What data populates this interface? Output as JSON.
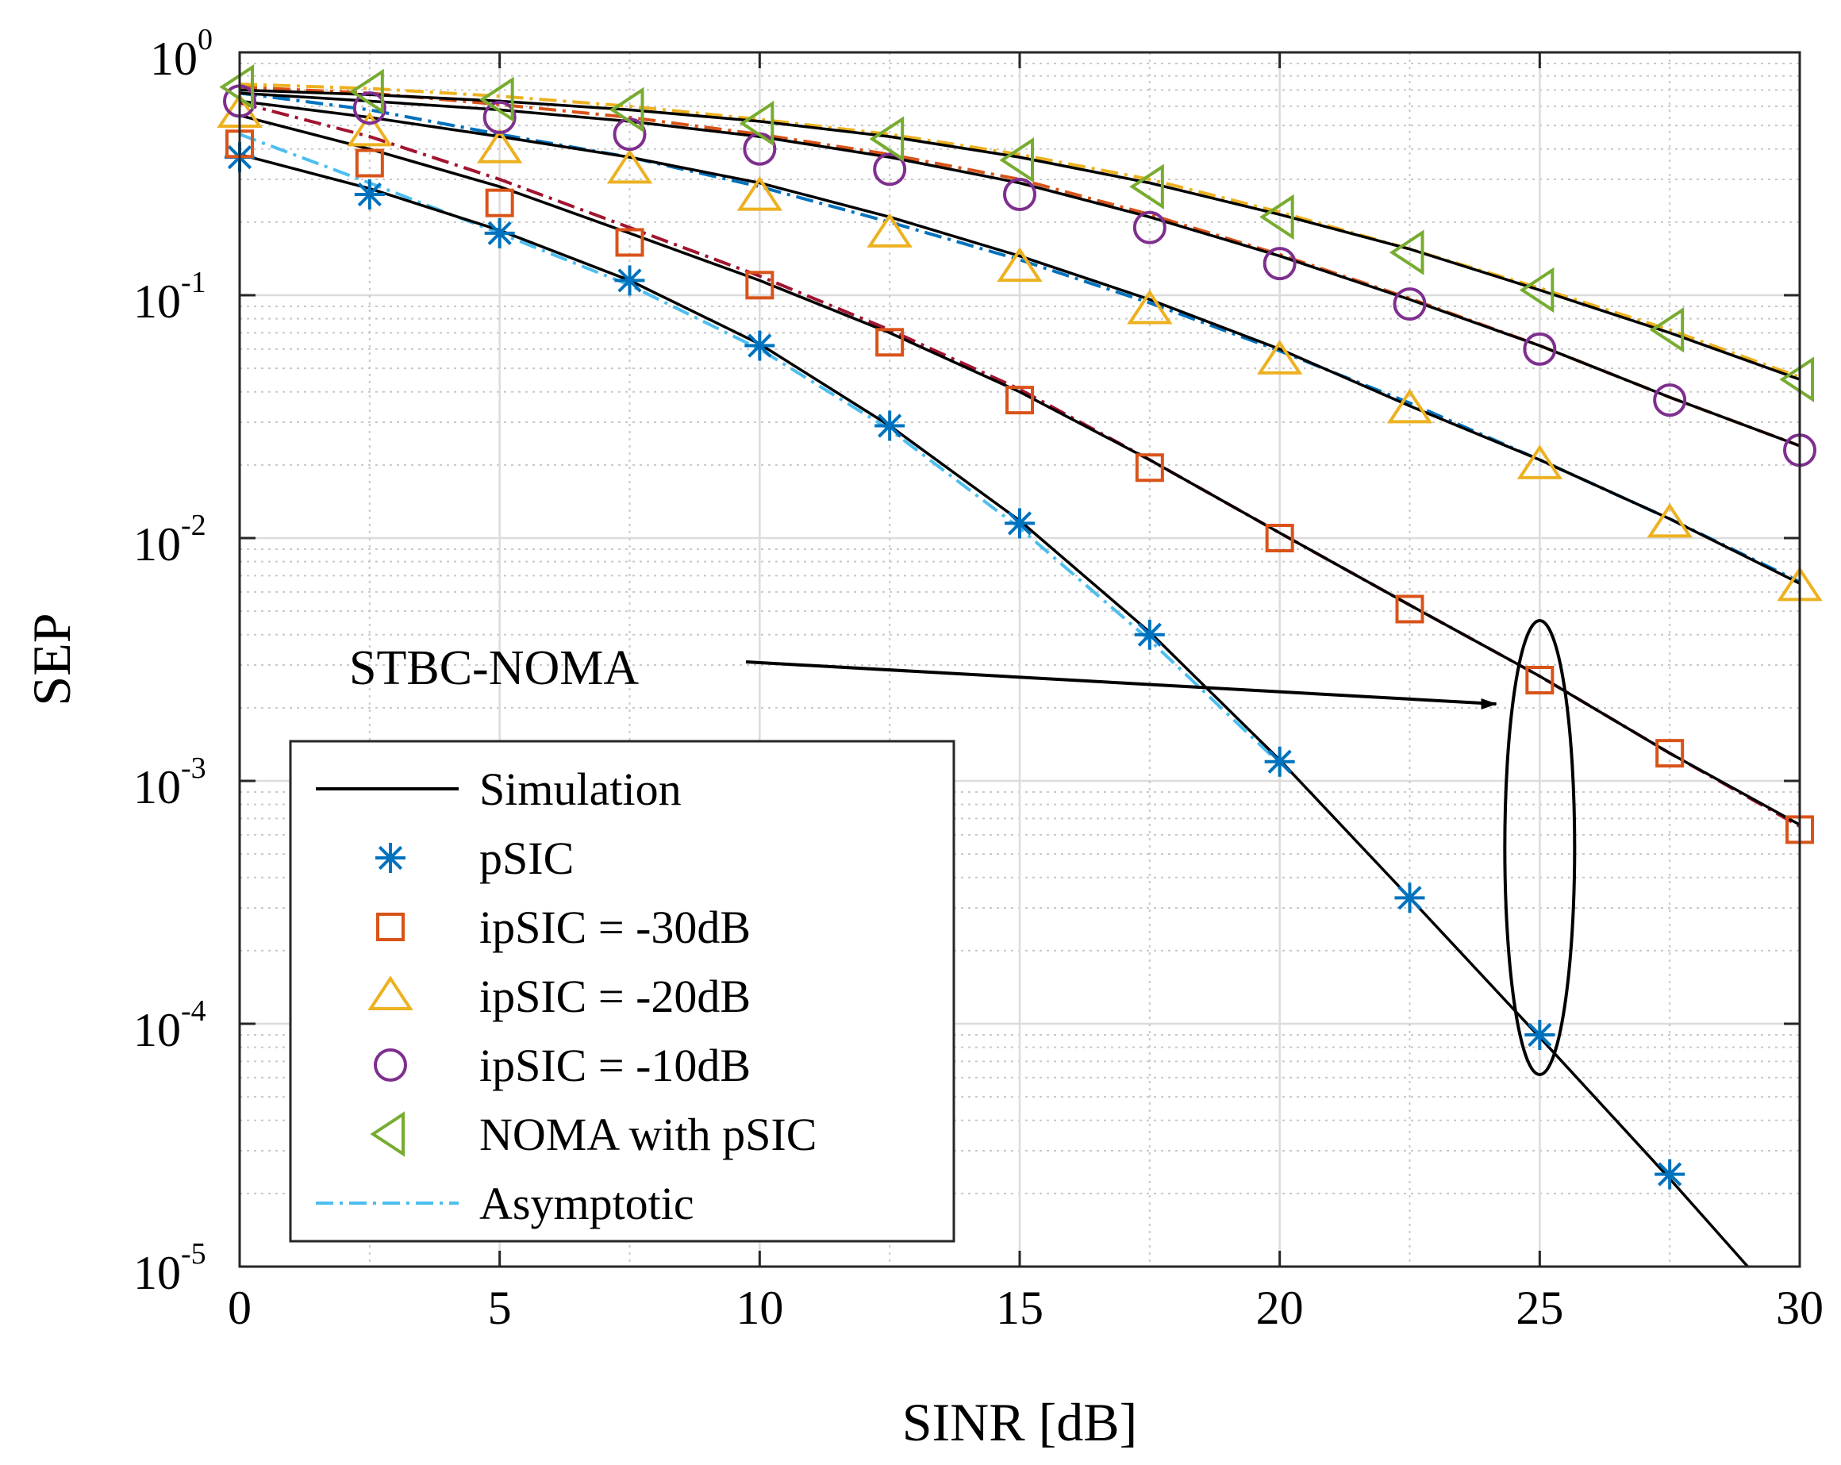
{
  "chart_data": {
    "type": "line",
    "yscale": "log",
    "xlabel": "SINR [dB]",
    "ylabel": "SEP",
    "xlim": [
      0,
      30
    ],
    "ylim": [
      1e-05,
      1
    ],
    "grid": true,
    "x_ticks": [
      0,
      5,
      10,
      15,
      20,
      25,
      30
    ],
    "x_tick_labels": [
      "0",
      "5",
      "10",
      "15",
      "20",
      "25",
      "30"
    ],
    "y_ticks": [
      {
        "value": 1,
        "base": "10",
        "exp": "0"
      },
      {
        "value": 0.1,
        "base": "10",
        "exp": "-1"
      },
      {
        "value": 0.01,
        "base": "10",
        "exp": "-2"
      },
      {
        "value": 0.001,
        "base": "10",
        "exp": "-3"
      },
      {
        "value": 0.0001,
        "base": "10",
        "exp": "-4"
      },
      {
        "value": 1e-05,
        "base": "10",
        "exp": "-5"
      }
    ],
    "marker_x": [
      0,
      2.5,
      5,
      7.5,
      10,
      12.5,
      15,
      17.5,
      20,
      22.5,
      25,
      27.5,
      30
    ],
    "series": [
      {
        "name": "pSIC",
        "marker": "asterisk",
        "color": "#0072BD",
        "x": [
          0,
          2.5,
          5,
          7.5,
          10,
          12.5,
          15,
          17.5,
          20,
          22.5,
          25,
          27.5
        ],
        "values": [
          0.37,
          0.26,
          0.18,
          0.115,
          0.062,
          0.029,
          0.0115,
          0.004,
          0.0012,
          0.00033,
          9e-05,
          2.4e-05
        ],
        "sim_x": [
          0,
          2.5,
          5,
          7.5,
          10,
          12.5,
          15,
          17.5,
          20,
          22.5,
          25,
          27.5,
          29
        ],
        "sim": [
          0.38,
          0.275,
          0.185,
          0.115,
          0.063,
          0.029,
          0.0118,
          0.0041,
          0.00122,
          0.00033,
          8.8e-05,
          2.3e-05,
          1e-05
        ],
        "asym_color": "#4DBEEE",
        "asym_x": [
          0,
          2.5,
          5,
          7.5,
          10,
          12.5,
          15,
          17.5,
          20
        ],
        "asym": [
          0.46,
          0.29,
          0.18,
          0.11,
          0.06,
          0.028,
          0.011,
          0.0038,
          0.00118
        ]
      },
      {
        "name": "ipSIC = -30dB",
        "marker": "square",
        "color": "#D95319",
        "x": [
          0,
          2.5,
          5,
          7.5,
          10,
          12.5,
          15,
          17.5,
          20,
          22.5,
          25,
          27.5,
          30
        ],
        "values": [
          0.42,
          0.35,
          0.24,
          0.165,
          0.11,
          0.064,
          0.037,
          0.0195,
          0.01,
          0.0051,
          0.0026,
          0.0013,
          0.00063
        ],
        "sim": [
          0.55,
          0.4,
          0.28,
          0.18,
          0.115,
          0.07,
          0.04,
          0.021,
          0.0105,
          0.0053,
          0.0027,
          0.0013,
          0.00066
        ],
        "asym_color": "#A2142F",
        "asym_x": [
          0,
          2.5,
          5,
          7.5,
          10,
          12.5,
          15,
          17.5,
          20,
          22.5,
          25,
          27.5,
          30
        ],
        "asym": [
          0.62,
          0.45,
          0.3,
          0.19,
          0.12,
          0.072,
          0.041,
          0.021,
          0.0105,
          0.0053,
          0.0027,
          0.0013,
          0.00065
        ]
      },
      {
        "name": "ipSIC = -20dB",
        "marker": "triangle-up",
        "color": "#EDB120",
        "x": [
          0,
          2.5,
          5,
          7.5,
          10,
          12.5,
          15,
          17.5,
          20,
          22.5,
          25,
          27.5,
          30
        ],
        "values": [
          0.56,
          0.47,
          0.4,
          0.33,
          0.255,
          0.18,
          0.13,
          0.087,
          0.054,
          0.034,
          0.02,
          0.0115,
          0.0063
        ],
        "sim": [
          0.63,
          0.54,
          0.45,
          0.37,
          0.29,
          0.21,
          0.145,
          0.096,
          0.06,
          0.035,
          0.021,
          0.012,
          0.0065
        ],
        "asym_color": "#0072BD",
        "asym_x": [
          0,
          2.5,
          5,
          7.5,
          10,
          12.5,
          15,
          17.5,
          20,
          22.5,
          25,
          27.5,
          30
        ],
        "asym": [
          0.68,
          0.58,
          0.46,
          0.37,
          0.28,
          0.2,
          0.14,
          0.093,
          0.059,
          0.036,
          0.021,
          0.012,
          0.0066
        ]
      },
      {
        "name": "ipSIC = -10dB",
        "marker": "circle",
        "color": "#7E2F8E",
        "x": [
          0,
          2.5,
          5,
          7.5,
          10,
          12.5,
          15,
          17.5,
          20,
          22.5,
          25,
          27.5,
          30
        ],
        "values": [
          0.63,
          0.59,
          0.54,
          0.46,
          0.4,
          0.33,
          0.26,
          0.19,
          0.135,
          0.092,
          0.06,
          0.037,
          0.023
        ],
        "sim": [
          0.68,
          0.63,
          0.58,
          0.52,
          0.45,
          0.37,
          0.29,
          0.21,
          0.145,
          0.096,
          0.062,
          0.038,
          0.024
        ],
        "asym_color": "#D95319",
        "asym_x": [
          0,
          2.5,
          5,
          7.5,
          10,
          12.5,
          15,
          17.5,
          20,
          22.5,
          25,
          27.5,
          30
        ],
        "asym": [
          0.72,
          0.68,
          0.61,
          0.54,
          0.46,
          0.38,
          0.3,
          0.215,
          0.147,
          0.097,
          0.062,
          0.038,
          0.024
        ]
      },
      {
        "name": "NOMA with pSIC",
        "marker": "triangle-left",
        "color": "#77AC30",
        "x": [
          0,
          2.5,
          5,
          7.5,
          10,
          12.5,
          15,
          17.5,
          20,
          22.5,
          25,
          27.5,
          30
        ],
        "values": [
          0.72,
          0.69,
          0.64,
          0.58,
          0.51,
          0.44,
          0.36,
          0.28,
          0.21,
          0.15,
          0.105,
          0.072,
          0.045
        ],
        "sim": [
          0.7,
          0.67,
          0.63,
          0.58,
          0.52,
          0.45,
          0.37,
          0.29,
          0.215,
          0.155,
          0.105,
          0.07,
          0.045
        ],
        "asym_color": "#EDB120",
        "asym_x": [
          0,
          2.5,
          5,
          7.5,
          10,
          12.5,
          15,
          17.5,
          20,
          22.5,
          25,
          27.5,
          30
        ],
        "asym": [
          0.74,
          0.71,
          0.66,
          0.6,
          0.53,
          0.46,
          0.38,
          0.3,
          0.22,
          0.155,
          0.107,
          0.072,
          0.046
        ]
      }
    ],
    "legend": {
      "position": "bottom-left",
      "entries": [
        {
          "label": "Simulation",
          "style": "solid-line",
          "color": "#000000"
        },
        {
          "label": "pSIC",
          "style": "marker",
          "marker": "asterisk",
          "color": "#0072BD"
        },
        {
          "label": "ipSIC = -30dB",
          "style": "marker",
          "marker": "square",
          "color": "#D95319"
        },
        {
          "label": "ipSIC = -20dB",
          "style": "marker",
          "marker": "triangle-up",
          "color": "#EDB120"
        },
        {
          "label": "ipSIC = -10dB",
          "style": "marker",
          "marker": "circle",
          "color": "#7E2F8E"
        },
        {
          "label": " NOMA with pSIC",
          "style": "marker",
          "marker": "triangle-left",
          "color": "#77AC30"
        },
        {
          "label": "Asymptotic",
          "style": "dash-dot-line",
          "color": "#4DBEEE"
        }
      ]
    },
    "annotation": {
      "text": "STBC-NOMA",
      "ellipse_center": {
        "x": 25,
        "y": 0.0009
      },
      "arrow_target": {
        "x": 24.5,
        "y": 0.0025
      }
    }
  }
}
